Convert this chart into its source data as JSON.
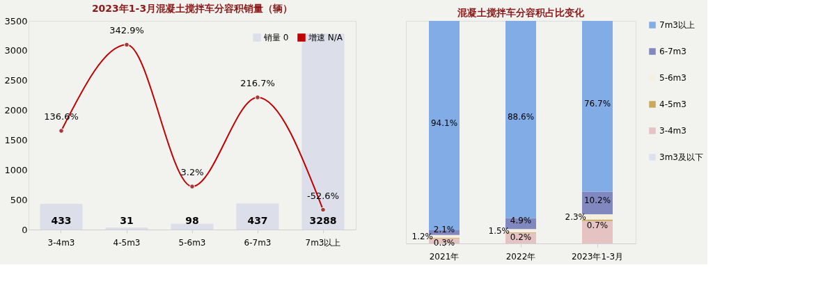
{
  "chart_data": [
    {
      "type": "bar",
      "title": "2023年1-3月混凝土搅拌车分容积销量（辆）",
      "categories": [
        "3-4m3",
        "4-5m3",
        "5-6m3",
        "6-7m3",
        "7m3以上"
      ],
      "ylim": [
        0,
        3500
      ],
      "yticks": [
        0,
        500,
        1000,
        1500,
        2000,
        2500,
        3000,
        3500
      ],
      "y2lim": [
        -100,
        400
      ],
      "legend": "top right",
      "series": [
        {
          "name": "销量 0",
          "type": "bar",
          "color": "#dcdfea",
          "values": [
            433,
            31,
            98,
            437,
            3288
          ],
          "value_labels": [
            "433",
            "31",
            "98",
            "437",
            "3288"
          ]
        },
        {
          "name": "增速 N/A",
          "type": "line",
          "axis": "y2",
          "color": "#c00000",
          "marker": "circle",
          "values": [
            136.6,
            342.9,
            3.2,
            216.7,
            -52.6
          ],
          "value_labels": [
            "136.6%",
            "342.9%",
            "3.2%",
            "216.7%",
            "-52.6%"
          ]
        }
      ]
    },
    {
      "type": "bar",
      "stacked": true,
      "title": "混凝土搅拌车分容积占比变化",
      "categories": [
        "2021年",
        "2022年",
        "2023年1-3月"
      ],
      "ylim": [
        0,
        100
      ],
      "tick_labels": "x",
      "legend": "right",
      "series": [
        {
          "name": "3m3及以下",
          "color": "#dde0ee",
          "values": [
            0,
            0,
            0
          ],
          "value_labels": [
            null,
            null,
            null
          ]
        },
        {
          "name": "3-4m3",
          "color": "#e6c3c3",
          "values": [
            2.3,
            4.8,
            10.1
          ],
          "value_labels": [
            null,
            null,
            null
          ]
        },
        {
          "name": "4-5m3",
          "color": "#c9a95a",
          "values": [
            0.3,
            0.2,
            0.7
          ],
          "value_labels": [
            "0.3%",
            "0.2%",
            "0.7%"
          ]
        },
        {
          "name": "5-6m3",
          "color": "#f5efe0",
          "values": [
            1.2,
            1.5,
            2.3
          ],
          "value_labels": [
            "1.2%",
            "1.5%",
            "2.3%"
          ]
        },
        {
          "name": "6-7m3",
          "color": "#8088bf",
          "values": [
            2.1,
            4.9,
            10.2
          ],
          "value_labels": [
            "2.1%",
            "4.9%",
            "10.2%"
          ]
        },
        {
          "name": "7m3以上",
          "color": "#82ace6",
          "values": [
            94.1,
            88.6,
            76.7
          ],
          "value_labels": [
            "94.1%",
            "88.6%",
            "76.7%"
          ]
        }
      ]
    }
  ]
}
